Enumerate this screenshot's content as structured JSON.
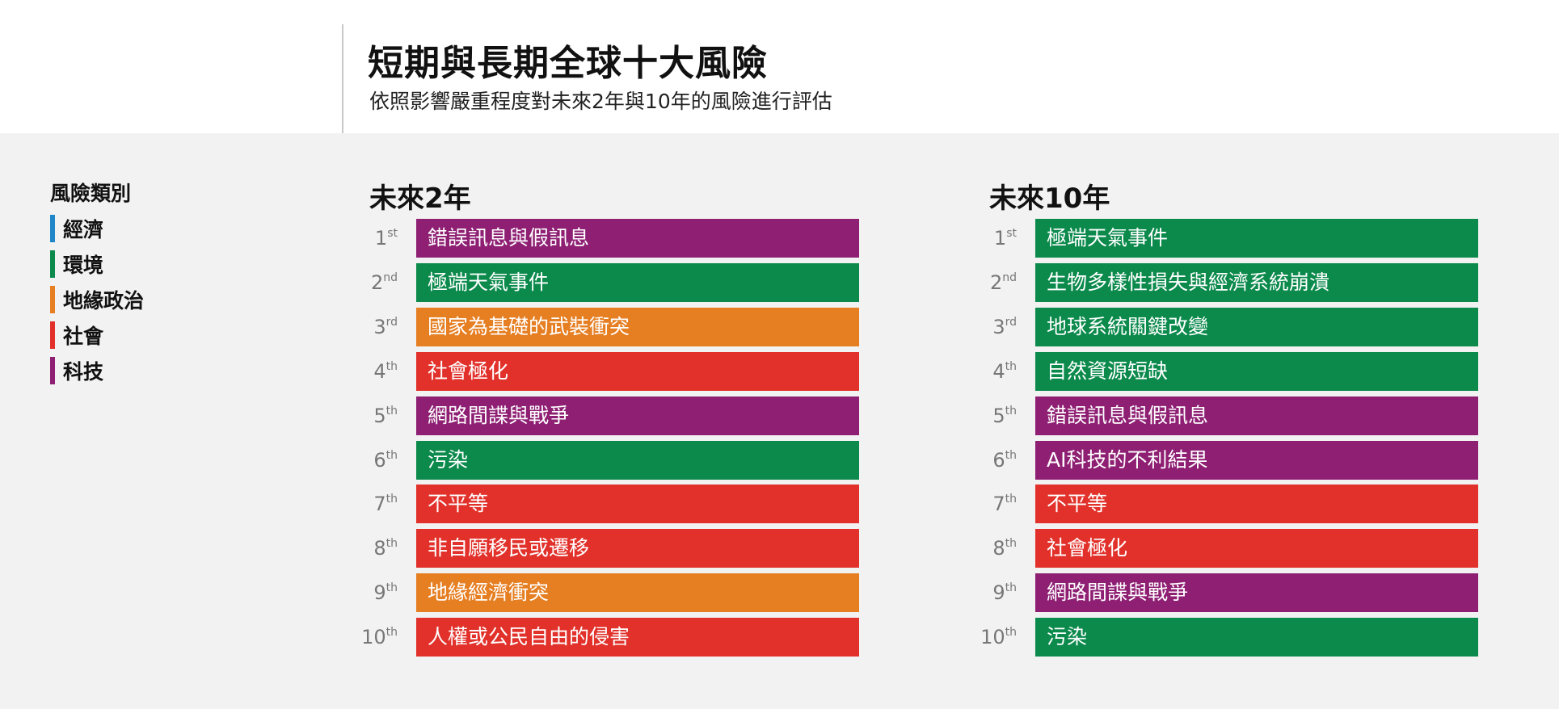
{
  "header": {
    "title": "短期與長期全球十大風險",
    "subtitle": "依照影響嚴重程度對未來2年與10年的風險進行評估"
  },
  "legend": {
    "title": "風險類別",
    "items": [
      {
        "key": "economic",
        "label": "經濟",
        "color": "#1f86c8"
      },
      {
        "key": "environmental",
        "label": "環境",
        "color": "#0b8a4c"
      },
      {
        "key": "geopolitical",
        "label": "地緣政治",
        "color": "#e67e22"
      },
      {
        "key": "societal",
        "label": "社會",
        "color": "#e2312b"
      },
      {
        "key": "technological",
        "label": "科技",
        "color": "#8e1f73"
      }
    ]
  },
  "chart_data": [
    {
      "type": "table",
      "title": "未來2年",
      "ranks": [
        {
          "num": "1",
          "suffix": "st",
          "label": "錯誤訊息與假訊息",
          "category": "technological"
        },
        {
          "num": "2",
          "suffix": "nd",
          "label": "極端天氣事件",
          "category": "environmental"
        },
        {
          "num": "3",
          "suffix": "rd",
          "label": "國家為基礎的武裝衝突",
          "category": "geopolitical"
        },
        {
          "num": "4",
          "suffix": "th",
          "label": "社會極化",
          "category": "societal"
        },
        {
          "num": "5",
          "suffix": "th",
          "label": "網路間諜與戰爭",
          "category": "technological"
        },
        {
          "num": "6",
          "suffix": "th",
          "label": "污染",
          "category": "environmental"
        },
        {
          "num": "7",
          "suffix": "th",
          "label": "不平等",
          "category": "societal"
        },
        {
          "num": "8",
          "suffix": "th",
          "label": "非自願移民或遷移",
          "category": "societal"
        },
        {
          "num": "9",
          "suffix": "th",
          "label": "地緣經濟衝突",
          "category": "geopolitical"
        },
        {
          "num": "10",
          "suffix": "th",
          "label": "人權或公民自由的侵害",
          "category": "societal"
        }
      ]
    },
    {
      "type": "table",
      "title": "未來10年",
      "ranks": [
        {
          "num": "1",
          "suffix": "st",
          "label": "極端天氣事件",
          "category": "environmental"
        },
        {
          "num": "2",
          "suffix": "nd",
          "label": "生物多樣性損失與經濟系統崩潰",
          "category": "environmental"
        },
        {
          "num": "3",
          "suffix": "rd",
          "label": "地球系統關鍵改變",
          "category": "environmental"
        },
        {
          "num": "4",
          "suffix": "th",
          "label": "自然資源短缺",
          "category": "environmental"
        },
        {
          "num": "5",
          "suffix": "th",
          "label": "錯誤訊息與假訊息",
          "category": "technological"
        },
        {
          "num": "6",
          "suffix": "th",
          "label": "AI科技的不利結果",
          "category": "technological"
        },
        {
          "num": "7",
          "suffix": "th",
          "label": "不平等",
          "category": "societal"
        },
        {
          "num": "8",
          "suffix": "th",
          "label": "社會極化",
          "category": "societal"
        },
        {
          "num": "9",
          "suffix": "th",
          "label": "網路間諜與戰爭",
          "category": "technological"
        },
        {
          "num": "10",
          "suffix": "th",
          "label": "污染",
          "category": "environmental"
        }
      ]
    }
  ]
}
